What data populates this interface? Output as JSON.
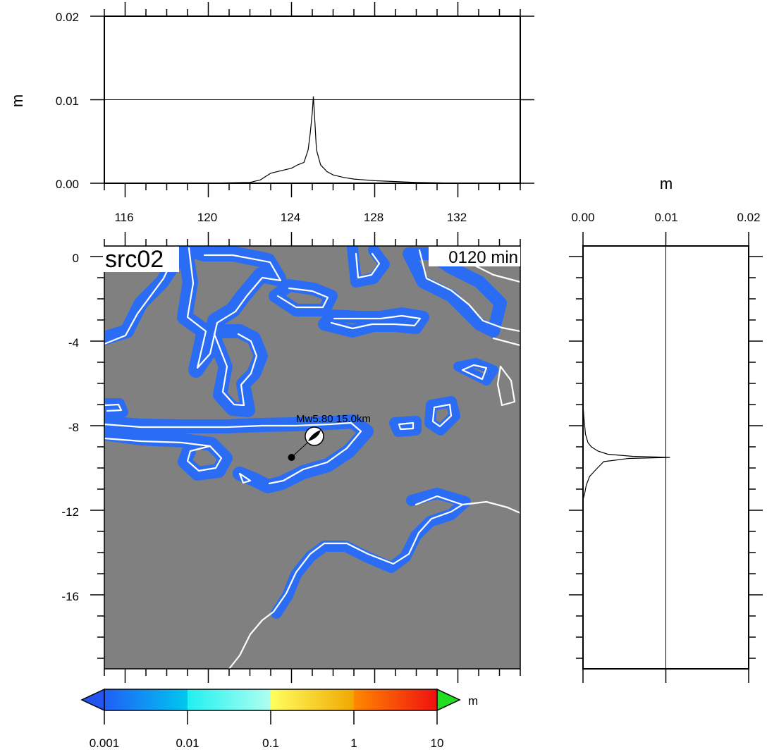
{
  "map": {
    "label": "src02",
    "time_label": "0120 min",
    "source_label": "Mw5.80  15.0km",
    "lon_range": [
      115,
      135
    ],
    "lat_range": [
      -19.5,
      0.5
    ],
    "lon_ticks": [
      "116",
      "120",
      "124",
      "128",
      "132"
    ],
    "lat_ticks": [
      "0",
      "-4",
      "-8",
      "-12",
      "-16"
    ],
    "epicenter": {
      "lon": 124.0,
      "lat": -9.5
    },
    "beachball": {
      "lon": 125.1,
      "lat": -8.5
    },
    "ocean_color": "#808080",
    "coast_color": "#ffffff",
    "wave_color": "#2a6df4"
  },
  "top_profile": {
    "ylabel": "m",
    "y_ticks": [
      "0.00",
      "0.01",
      "0.02"
    ],
    "ylim": [
      0,
      0.02
    ],
    "reference_line": 0.01
  },
  "side_profile": {
    "xlabel": "m",
    "x_ticks": [
      "0.00",
      "0.01",
      "0.02"
    ],
    "xlim": [
      0,
      0.02
    ],
    "reference_line": 0.01
  },
  "colorbar": {
    "unit": "m",
    "ticks": [
      "0.001",
      "0.01",
      "0.1",
      "1",
      "10"
    ],
    "low_color": "#2255ee",
    "high_color": "#22dd22"
  },
  "chart_data": [
    {
      "type": "line",
      "name_ref": "top_profile",
      "x": [
        120,
        121,
        122,
        122.5,
        123,
        123.5,
        124,
        124.3,
        124.6,
        124.8,
        124.9,
        125.0,
        125.05,
        125.1,
        125.2,
        125.4,
        125.7,
        126,
        126.5,
        127,
        128,
        129,
        130,
        131,
        132,
        133
      ],
      "values": [
        0,
        5e-05,
        0.0001,
        0.0004,
        0.0012,
        0.0015,
        0.0018,
        0.0022,
        0.0025,
        0.004,
        0.006,
        0.0085,
        0.0104,
        0.0085,
        0.004,
        0.0022,
        0.0014,
        0.001,
        0.0007,
        0.0005,
        0.0003,
        0.0002,
        0.0001,
        5e-05,
        0.0,
        0.0
      ],
      "xlim": [
        115,
        135
      ],
      "ylim": [
        0,
        0.02
      ]
    },
    {
      "type": "line",
      "name_ref": "side_profile",
      "y": [
        -7,
        -7.6,
        -8.0,
        -8.4,
        -8.8,
        -9.0,
        -9.2,
        -9.35,
        -9.45,
        -9.5,
        -9.55,
        -9.7,
        -9.9,
        -10.1,
        -10.4,
        -10.8,
        -11.2,
        -11.5
      ],
      "values": [
        0,
        0.0001,
        0.0002,
        0.0003,
        0.0006,
        0.001,
        0.0018,
        0.003,
        0.006,
        0.0105,
        0.0055,
        0.0025,
        0.002,
        0.0015,
        0.0008,
        0.0004,
        0.0002,
        0
      ],
      "ylim": [
        -19.5,
        0.5
      ],
      "xlim": [
        0,
        0.02
      ]
    }
  ]
}
